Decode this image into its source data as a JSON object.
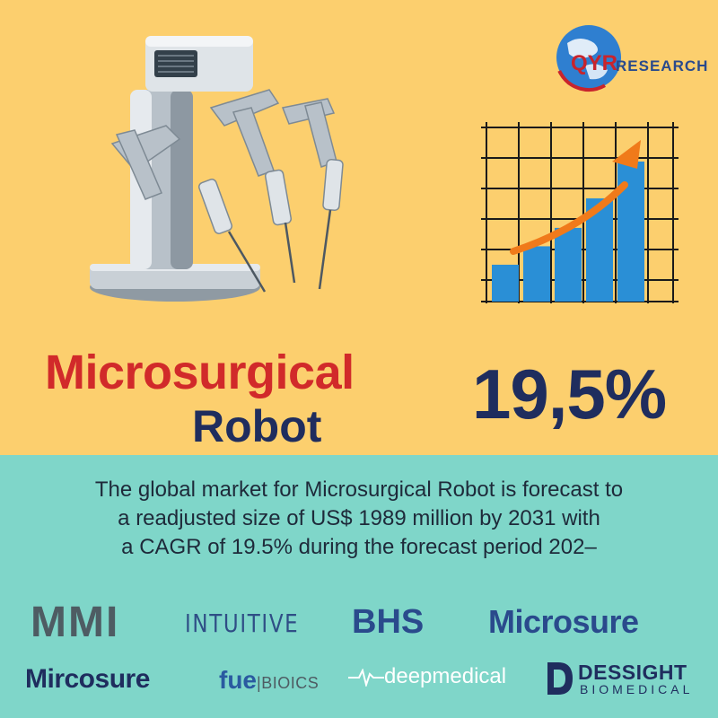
{
  "header": {
    "logo_qyr": "QYR",
    "logo_research": "RESEARCH"
  },
  "title": {
    "line1": "Microsurgical",
    "line2": "Robot",
    "percentage": "19,5%"
  },
  "description": {
    "line1": "The global market for Microsurgical Robot is forecast to",
    "line2": "a readjusted size of US$ 1989 million by 2031 with",
    "line3": "a CAGR of 19.5% during the forecast period 202–"
  },
  "brands": {
    "mmi": "MMI",
    "intuitive": "INTUITIVE",
    "bhs": "BHS",
    "microsure": "Microsure",
    "mircosure": "Mircosure",
    "fue": "fue",
    "fue_suffix": "BIOICS",
    "deepmedical": "deepmedical",
    "dessight_name": "DESSIGHT",
    "dessight_sub": "BIOMEDICAL"
  },
  "colors": {
    "top_background": "#fccf6e",
    "bottom_background": "#7fd6c9",
    "title_red": "#d12a2a",
    "navy": "#1f2d5e",
    "arrow_orange": "#f07a1a",
    "bar_blue": "#2a8fd6"
  },
  "chart_data": {
    "type": "bar",
    "values": [
      1,
      1.5,
      2,
      2.8,
      3.8
    ],
    "trend": "increasing"
  }
}
